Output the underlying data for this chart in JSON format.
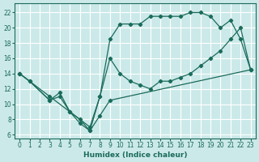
{
  "xlabel": "Humidex (Indice chaleur)",
  "background_color": "#cce9e9",
  "grid_color": "#ffffff",
  "line_color": "#1a6b5a",
  "xlim": [
    -0.5,
    23.5
  ],
  "ylim": [
    5.5,
    23.2
  ],
  "xticks": [
    0,
    1,
    2,
    3,
    4,
    5,
    6,
    7,
    8,
    9,
    10,
    11,
    12,
    13,
    14,
    15,
    16,
    17,
    18,
    19,
    20,
    21,
    22,
    23
  ],
  "yticks": [
    6,
    8,
    10,
    12,
    14,
    16,
    18,
    20,
    22
  ],
  "curve_top_x": [
    0,
    1,
    3,
    4,
    5,
    6,
    7,
    8,
    9,
    10,
    11,
    12,
    13,
    14,
    15,
    16,
    17,
    18,
    19,
    20,
    21,
    22,
    23
  ],
  "curve_top_y": [
    14,
    13,
    10.5,
    11.5,
    9,
    7.5,
    6.5,
    11,
    18.5,
    20.5,
    20.5,
    20.5,
    21.5,
    21.5,
    21.5,
    21.5,
    22,
    22,
    21.5,
    20,
    21,
    18.5,
    14.5
  ],
  "curve_mid_x": [
    0,
    3,
    7,
    8,
    9,
    10,
    11,
    12,
    13,
    14,
    15,
    16,
    17,
    18,
    19,
    20,
    21,
    22,
    23
  ],
  "curve_mid_y": [
    14,
    11,
    7,
    11,
    16,
    14,
    13,
    12.5,
    12,
    13,
    13,
    13.5,
    14,
    15,
    16,
    17,
    18.5,
    20,
    14.5
  ],
  "curve_bot_x": [
    0,
    1,
    3,
    4,
    5,
    6,
    7,
    8,
    9,
    23
  ],
  "curve_bot_y": [
    14,
    13,
    10.5,
    11,
    9,
    8,
    6.5,
    8.5,
    10.5,
    14.5
  ]
}
